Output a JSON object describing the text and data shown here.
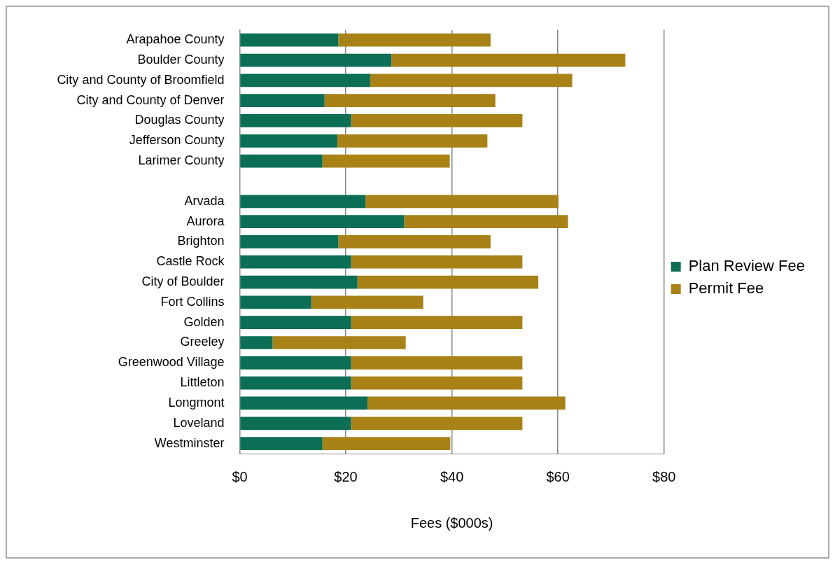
{
  "chart_data": {
    "type": "bar",
    "orientation": "horizontal",
    "stacked": true,
    "xlabel": "Fees ($000s)",
    "categories": [
      "Arapahoe County",
      "Boulder County",
      "City and County of Broomfield",
      "City and County of Denver",
      "Douglas County",
      "Jefferson County",
      "Larimer County",
      null,
      "Arvada",
      "Aurora",
      "Brighton",
      "Castle Rock",
      "City of Boulder",
      "Fort Collins",
      "Golden",
      "Greeley",
      "Greenwood Village",
      "Littleton",
      "Longmont",
      "Loveland",
      "Westminster"
    ],
    "series": [
      {
        "name": "Plan Review Fee",
        "color": "#0b6e55",
        "values": [
          18.6,
          28.6,
          24.6,
          16.0,
          21.0,
          18.4,
          15.6,
          null,
          23.7,
          31.0,
          18.6,
          21.0,
          22.2,
          13.5,
          21.0,
          6.2,
          21.0,
          21.0,
          24.1,
          21.0,
          15.6
        ]
      },
      {
        "name": "Permit Fee",
        "color": "#a88217",
        "values": [
          28.7,
          44.1,
          38.1,
          32.2,
          32.3,
          28.3,
          24.0,
          null,
          36.4,
          30.9,
          28.7,
          32.3,
          34.1,
          21.1,
          32.3,
          25.1,
          32.3,
          32.3,
          37.3,
          32.3,
          24.1
        ]
      }
    ],
    "xlim": [
      0,
      80
    ],
    "xticks": [
      {
        "value": 0,
        "label": "$0"
      },
      {
        "value": 20,
        "label": "$20"
      },
      {
        "value": 40,
        "label": "$40"
      },
      {
        "value": 60,
        "label": "$60"
      },
      {
        "value": 80,
        "label": "$80"
      }
    ],
    "grid": "x",
    "legend": "right"
  }
}
